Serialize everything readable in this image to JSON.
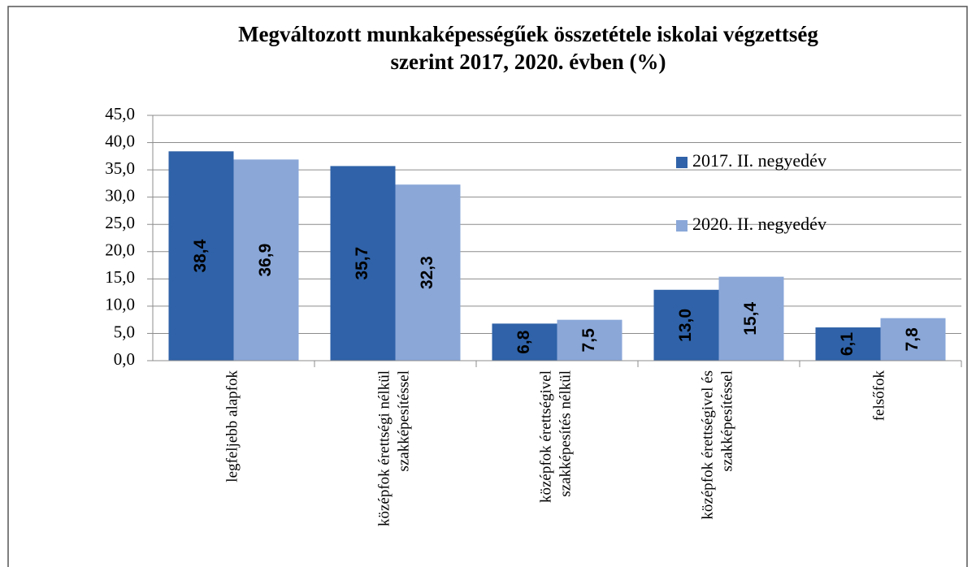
{
  "chart_data": {
    "type": "bar",
    "title": "Megváltozott munkaképességűek összetétele iskolai végzettség szerint 2017, 2020. évben (%)",
    "categories": [
      "legfeljebb alapfok",
      "középfok érettségi nélkül szakképesítéssel",
      "középfok érettségivel szakképesítés nélkül",
      "középfok érettségivel és szakképesítéssel",
      "felsőfok"
    ],
    "series": [
      {
        "name": "2017. II. negyedév",
        "color": "#2f62a8",
        "values": [
          38.4,
          35.7,
          6.8,
          13.0,
          6.1
        ],
        "value_labels": [
          "38,4",
          "35,7",
          "6,8",
          "13,0",
          "6,1"
        ]
      },
      {
        "name": "2020. II. negyedév",
        "color": "#8aa7d8",
        "values": [
          36.9,
          32.3,
          7.5,
          15.4,
          7.8
        ],
        "value_labels": [
          "36,9",
          "32,3",
          "7,5",
          "15,4",
          "7,8"
        ]
      }
    ],
    "ylim": [
      0,
      45
    ],
    "yticks": [
      {
        "value": 0,
        "label": "0,0"
      },
      {
        "value": 5,
        "label": "5,0"
      },
      {
        "value": 10,
        "label": "10,0"
      },
      {
        "value": 15,
        "label": "15,0"
      },
      {
        "value": 20,
        "label": "20,0"
      },
      {
        "value": 25,
        "label": "25,0"
      },
      {
        "value": 30,
        "label": "30,0"
      },
      {
        "value": 35,
        "label": "35,0"
      },
      {
        "value": 40,
        "label": "40,0"
      },
      {
        "value": 45,
        "label": "45,0"
      }
    ],
    "grid": true,
    "legend": "right"
  }
}
